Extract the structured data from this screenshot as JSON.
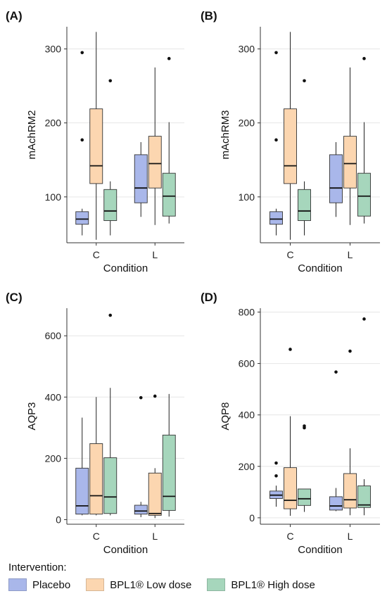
{
  "colors": {
    "placebo": "#a9b7ea",
    "low": "#fcd6b0",
    "high": "#a6d6bc",
    "grid": "#e6e6e6",
    "axis": "#333333"
  },
  "legend": {
    "title": "Intervention:",
    "items": [
      {
        "label": "Placebo",
        "color_key": "placebo"
      },
      {
        "label": "BPL1® Low dose",
        "color_key": "low"
      },
      {
        "label": "BPL1® High dose",
        "color_key": "high"
      }
    ]
  },
  "chart_data": [
    {
      "type": "boxplot",
      "panel": "(A)",
      "ylabel": "mAchRM2",
      "xlabel": "Condition",
      "categories": [
        "C",
        "L"
      ],
      "ylim": [
        38,
        330
      ],
      "yticks": [
        100,
        200,
        300
      ],
      "series": [
        {
          "name": "Placebo",
          "color_key": "placebo",
          "boxes": [
            {
              "min": 48,
              "q1": 63,
              "median": 70,
              "q3": 80,
              "max": 84,
              "outliers": [
                177,
                295
              ]
            },
            {
              "min": 73,
              "q1": 92,
              "median": 112,
              "q3": 157,
              "max": 174,
              "outliers": []
            }
          ]
        },
        {
          "name": "BPL1® Low dose",
          "color_key": "low",
          "boxes": [
            {
              "min": 42,
              "q1": 118,
              "median": 142,
              "q3": 219,
              "max": 323,
              "outliers": []
            },
            {
              "min": 62,
              "q1": 112,
              "median": 145,
              "q3": 182,
              "max": 275,
              "outliers": []
            }
          ]
        },
        {
          "name": "BPL1® High dose",
          "color_key": "high",
          "boxes": [
            {
              "min": 48,
              "q1": 68,
              "median": 81,
              "q3": 110,
              "max": 121,
              "outliers": [
                257
              ]
            },
            {
              "min": 64,
              "q1": 74,
              "median": 101,
              "q3": 132,
              "max": 201,
              "outliers": [
                287
              ]
            }
          ]
        }
      ]
    },
    {
      "type": "boxplot",
      "panel": "(B)",
      "ylabel": "mAchRM3",
      "xlabel": "Condition",
      "categories": [
        "C",
        "L"
      ],
      "ylim": [
        38,
        330
      ],
      "yticks": [
        100,
        200,
        300
      ],
      "series": [
        {
          "name": "Placebo",
          "color_key": "placebo",
          "boxes": [
            {
              "min": 48,
              "q1": 63,
              "median": 70,
              "q3": 80,
              "max": 84,
              "outliers": [
                177,
                295
              ]
            },
            {
              "min": 73,
              "q1": 92,
              "median": 112,
              "q3": 157,
              "max": 174,
              "outliers": []
            }
          ]
        },
        {
          "name": "BPL1® Low dose",
          "color_key": "low",
          "boxes": [
            {
              "min": 42,
              "q1": 118,
              "median": 142,
              "q3": 219,
              "max": 323,
              "outliers": []
            },
            {
              "min": 62,
              "q1": 112,
              "median": 145,
              "q3": 182,
              "max": 275,
              "outliers": []
            }
          ]
        },
        {
          "name": "BPL1® High dose",
          "color_key": "high",
          "boxes": [
            {
              "min": 48,
              "q1": 68,
              "median": 81,
              "q3": 110,
              "max": 121,
              "outliers": [
                257
              ]
            },
            {
              "min": 64,
              "q1": 74,
              "median": 101,
              "q3": 132,
              "max": 201,
              "outliers": [
                287
              ]
            }
          ]
        }
      ]
    },
    {
      "type": "boxplot",
      "panel": "(C)",
      "ylabel": "AQP3",
      "xlabel": "Condition",
      "categories": [
        "C",
        "L"
      ],
      "ylim": [
        -15,
        690
      ],
      "yticks": [
        0,
        200,
        400,
        600
      ],
      "series": [
        {
          "name": "Placebo",
          "color_key": "placebo",
          "boxes": [
            {
              "min": 14,
              "q1": 18,
              "median": 45,
              "q3": 168,
              "max": 333,
              "outliers": []
            },
            {
              "min": 8,
              "q1": 18,
              "median": 28,
              "q3": 47,
              "max": 58,
              "outliers": [
                398
              ]
            }
          ]
        },
        {
          "name": "BPL1® Low dose",
          "color_key": "low",
          "boxes": [
            {
              "min": 14,
              "q1": 18,
              "median": 78,
              "q3": 248,
              "max": 400,
              "outliers": []
            },
            {
              "min": 5,
              "q1": 14,
              "median": 20,
              "q3": 152,
              "max": 168,
              "outliers": [
                403
              ]
            }
          ]
        },
        {
          "name": "BPL1® High dose",
          "color_key": "high",
          "boxes": [
            {
              "min": 14,
              "q1": 20,
              "median": 74,
              "q3": 202,
              "max": 430,
              "outliers": [
                667
              ]
            },
            {
              "min": 10,
              "q1": 30,
              "median": 76,
              "q3": 276,
              "max": 410,
              "outliers": []
            }
          ]
        }
      ]
    },
    {
      "type": "boxplot",
      "panel": "(D)",
      "ylabel": "AQP8",
      "xlabel": "Condition",
      "categories": [
        "C",
        "L"
      ],
      "ylim": [
        -25,
        815
      ],
      "yticks": [
        0,
        200,
        400,
        600,
        800
      ],
      "series": [
        {
          "name": "Placebo",
          "color_key": "placebo",
          "boxes": [
            {
              "min": 43,
              "q1": 75,
              "median": 88,
              "q3": 104,
              "max": 125,
              "outliers": [
                163,
                213
              ]
            },
            {
              "min": 26,
              "q1": 30,
              "median": 46,
              "q3": 82,
              "max": 116,
              "outliers": [
                567
              ]
            }
          ]
        },
        {
          "name": "BPL1® Low dose",
          "color_key": "low",
          "boxes": [
            {
              "min": 8,
              "q1": 35,
              "median": 68,
              "q3": 195,
              "max": 395,
              "outliers": [
                655
              ]
            },
            {
              "min": 10,
              "q1": 38,
              "median": 70,
              "q3": 172,
              "max": 270,
              "outliers": [
                648
              ]
            }
          ]
        },
        {
          "name": "BPL1® High dose",
          "color_key": "high",
          "boxes": [
            {
              "min": 23,
              "q1": 48,
              "median": 74,
              "q3": 112,
              "max": 112,
              "outliers": [
                350,
                357
              ]
            },
            {
              "min": 10,
              "q1": 40,
              "median": 50,
              "q3": 124,
              "max": 150,
              "outliers": [
                773
              ]
            }
          ]
        }
      ]
    }
  ]
}
